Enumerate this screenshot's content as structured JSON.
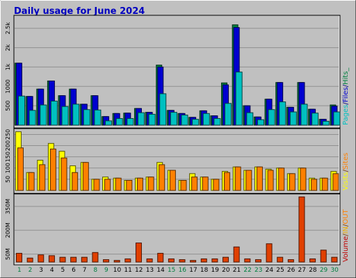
{
  "chart_data": {
    "type": "bar",
    "title": "Daily usage for June 2024",
    "days": [
      "1",
      "2",
      "3",
      "4",
      "5",
      "6",
      "7",
      "8",
      "9",
      "10",
      "11",
      "12",
      "13",
      "14",
      "15",
      "16",
      "17",
      "18",
      "19",
      "20",
      "21",
      "22",
      "23",
      "24",
      "25",
      "26",
      "27",
      "28",
      "29",
      "30"
    ],
    "weekend_days": [
      "1",
      "2",
      "8",
      "9",
      "15",
      "16",
      "22",
      "23",
      "29",
      "30"
    ],
    "panels": [
      {
        "id": "hits",
        "ymax": 2800,
        "yticks": [
          {
            "value": 500,
            "label": "500"
          },
          {
            "value": 1000,
            "label": "1000"
          },
          {
            "value": 1500,
            "label": "1k"
          },
          {
            "value": 2000,
            "label": "2k"
          },
          {
            "value": 2500,
            "label": "2.5k"
          }
        ],
        "legend": [
          "Pages",
          "/",
          "Files",
          "/",
          "Hits_"
        ],
        "legend_colors": [
          "#00c0c0",
          "#000080",
          "#0000d0",
          "#000080",
          "#008040"
        ],
        "series": [
          {
            "name": "Hits",
            "color": "#008040",
            "values": [
              1600,
              740,
              930,
              1140,
              760,
              930,
              540,
              760,
              220,
              300,
              310,
              430,
              330,
              1550,
              380,
              300,
              200,
              370,
              240,
              1090,
              2590,
              500,
              210,
              670,
              1100,
              460,
              1100,
              410,
              150,
              520
            ]
          },
          {
            "name": "Files",
            "color": "#0000d0",
            "values": [
              1600,
              740,
              930,
              1140,
              760,
              930,
              540,
              760,
              220,
              300,
              310,
              430,
              330,
              1500,
              380,
              300,
              200,
              370,
              240,
              1040,
              2520,
              500,
              210,
              670,
              1100,
              460,
              1100,
              410,
              150,
              490
            ]
          },
          {
            "name": "Pages",
            "color": "#00c0c0",
            "values": [
              750,
              380,
              520,
              620,
              480,
              540,
              400,
              390,
              110,
              170,
              170,
              320,
              280,
              810,
              330,
              260,
              150,
              300,
              170,
              560,
              1370,
              320,
              140,
              400,
              600,
              340,
              540,
              310,
              100,
              340
            ]
          }
        ]
      },
      {
        "id": "visits",
        "ymax": 270,
        "yticks": [
          {
            "value": 50,
            "label": "50"
          },
          {
            "value": 100,
            "label": "100"
          },
          {
            "value": 150,
            "label": "150"
          },
          {
            "value": 200,
            "label": "200"
          },
          {
            "value": 250,
            "label": "250"
          }
        ],
        "legend": [
          "Visits",
          "/",
          "Sites"
        ],
        "legend_colors": [
          "#ffff00",
          "#804000",
          "#ff8000"
        ],
        "series": [
          {
            "name": "Sites",
            "color": "#ffff00",
            "values": [
              262,
              80,
              135,
              210,
              175,
              110,
              125,
              50,
              60,
              55,
              45,
              55,
              60,
              125,
              90,
              45,
              75,
              60,
              50,
              85,
              105,
              90,
              105,
              95,
              100,
              75,
              100,
              55,
              55,
              85
            ]
          },
          {
            "name": "Visits",
            "color": "#ff8000",
            "values": [
              190,
              80,
              115,
              185,
              145,
              80,
              125,
              50,
              50,
              55,
              45,
              55,
              60,
              115,
              90,
              45,
              60,
              60,
              50,
              80,
              105,
              90,
              105,
              90,
              100,
              75,
              100,
              50,
              55,
              75
            ]
          }
        ]
      },
      {
        "id": "volume",
        "ymax": 420,
        "yticks": [
          {
            "value": 50,
            "label": "50M"
          },
          {
            "value": 200,
            "label": "200M"
          },
          {
            "value": 350,
            "label": "350M"
          }
        ],
        "legend": [
          "Volume",
          "/",
          "IN",
          "/",
          "OUT"
        ],
        "legend_colors": [
          "#c00000",
          "#804000",
          "#f0b000",
          "#804000",
          "#ff8000"
        ],
        "series": [
          {
            "name": "Volume",
            "color": "#e04000",
            "values": [
              55,
              25,
              45,
              40,
              30,
              30,
              30,
              60,
              15,
              10,
              20,
              120,
              20,
              55,
              20,
              15,
              10,
              20,
              20,
              30,
              95,
              20,
              15,
              115,
              30,
              15,
              410,
              20,
              75,
              30
            ]
          }
        ]
      }
    ]
  }
}
